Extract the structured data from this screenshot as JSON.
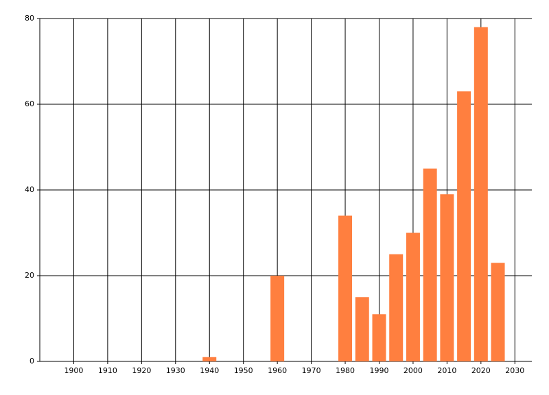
{
  "chart_data": {
    "type": "bar",
    "x": [
      1940,
      1960,
      1980,
      1985,
      1990,
      1995,
      2000,
      2005,
      2010,
      2015,
      2020,
      2025
    ],
    "values": [
      1,
      20,
      34,
      15,
      11,
      25,
      30,
      45,
      39,
      63,
      78,
      23
    ],
    "color": "#ff7f3f",
    "xlim": [
      1890,
      2035
    ],
    "xticks": [
      1900,
      1910,
      1920,
      1930,
      1940,
      1950,
      1960,
      1970,
      1980,
      1990,
      2000,
      2010,
      2020,
      2030
    ],
    "ylim": [
      0,
      80
    ],
    "yticks": [
      0,
      20,
      40,
      60,
      80
    ],
    "grid": true
  }
}
